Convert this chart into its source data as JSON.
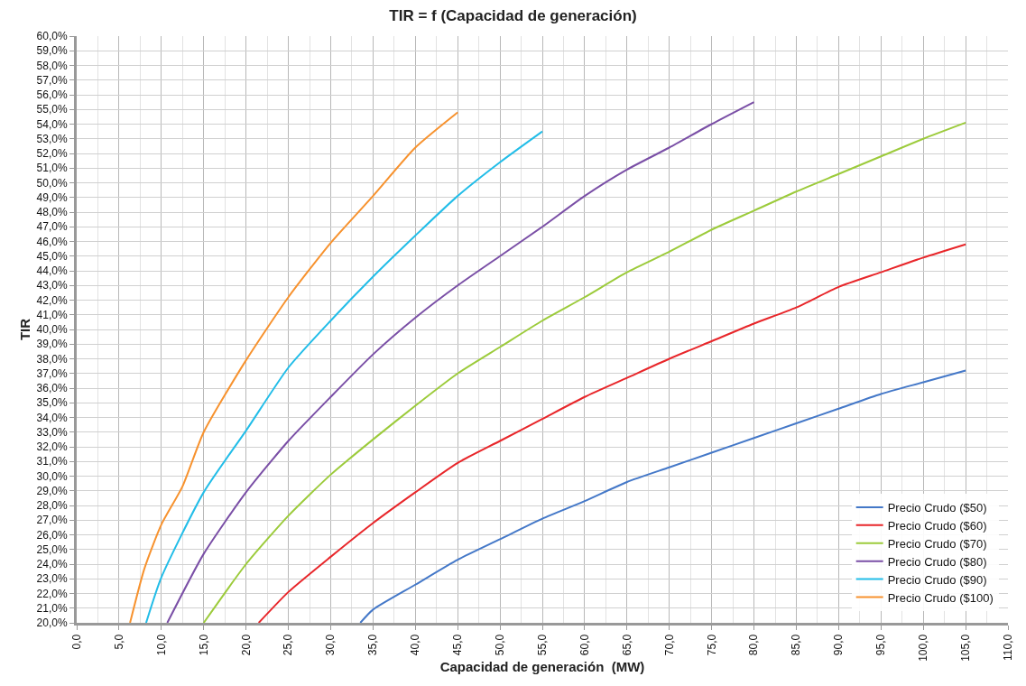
{
  "chart_data": {
    "type": "line",
    "title": "TIR = f (Capacidad de generación)",
    "xlabel": "Capacidad de generación  (MW)",
    "ylabel": "TIR",
    "xlim": [
      0,
      110
    ],
    "xticks": [
      {
        "value": 0,
        "label": "0,0"
      },
      {
        "value": 5,
        "label": "5,0"
      },
      {
        "value": 10,
        "label": "10,0"
      },
      {
        "value": 15,
        "label": "15,0"
      },
      {
        "value": 20,
        "label": "20,0"
      },
      {
        "value": 25,
        "label": "25,0"
      },
      {
        "value": 30,
        "label": "30,0"
      },
      {
        "value": 35,
        "label": "35,0"
      },
      {
        "value": 40,
        "label": "40,0"
      },
      {
        "value": 45,
        "label": "45,0"
      },
      {
        "value": 50,
        "label": "50,0"
      },
      {
        "value": 55,
        "label": "55,0"
      },
      {
        "value": 60,
        "label": "60,0"
      },
      {
        "value": 65,
        "label": "65,0"
      },
      {
        "value": 70,
        "label": "70,0"
      },
      {
        "value": 75,
        "label": "75,0"
      },
      {
        "value": 80,
        "label": "80,0"
      },
      {
        "value": 85,
        "label": "85,0"
      },
      {
        "value": 90,
        "label": "90,0"
      },
      {
        "value": 95,
        "label": "95,0"
      },
      {
        "value": 100,
        "label": "100,0"
      },
      {
        "value": 105,
        "label": "105,0"
      },
      {
        "value": 110,
        "label": "110,0"
      }
    ],
    "ylim": [
      20,
      60
    ],
    "yticks": [
      {
        "value": 20,
        "label": "20,0%"
      },
      {
        "value": 21,
        "label": "21,0%"
      },
      {
        "value": 22,
        "label": "22,0%"
      },
      {
        "value": 23,
        "label": "23,0%"
      },
      {
        "value": 24,
        "label": "24,0%"
      },
      {
        "value": 25,
        "label": "25,0%"
      },
      {
        "value": 26,
        "label": "26,0%"
      },
      {
        "value": 27,
        "label": "27,0%"
      },
      {
        "value": 28,
        "label": "28,0%"
      },
      {
        "value": 29,
        "label": "29,0%"
      },
      {
        "value": 30,
        "label": "30,0%"
      },
      {
        "value": 31,
        "label": "31,0%"
      },
      {
        "value": 32,
        "label": "32,0%"
      },
      {
        "value": 33,
        "label": "33,0%"
      },
      {
        "value": 34,
        "label": "34,0%"
      },
      {
        "value": 35,
        "label": "35,0%"
      },
      {
        "value": 36,
        "label": "36,0%"
      },
      {
        "value": 37,
        "label": "37,0%"
      },
      {
        "value": 38,
        "label": "38,0%"
      },
      {
        "value": 39,
        "label": "39,0%"
      },
      {
        "value": 40,
        "label": "40,0%"
      },
      {
        "value": 41,
        "label": "41,0%"
      },
      {
        "value": 42,
        "label": "42,0%"
      },
      {
        "value": 43,
        "label": "43,0%"
      },
      {
        "value": 44,
        "label": "44,0%"
      },
      {
        "value": 45,
        "label": "45,0%"
      },
      {
        "value": 46,
        "label": "46,0%"
      },
      {
        "value": 47,
        "label": "47,0%"
      },
      {
        "value": 48,
        "label": "48,0%"
      },
      {
        "value": 49,
        "label": "49,0%"
      },
      {
        "value": 50,
        "label": "50,0%"
      },
      {
        "value": 51,
        "label": "51,0%"
      },
      {
        "value": 52,
        "label": "52,0%"
      },
      {
        "value": 53,
        "label": "53,0%"
      },
      {
        "value": 54,
        "label": "54,0%"
      },
      {
        "value": 55,
        "label": "55,0%"
      },
      {
        "value": 56,
        "label": "56,0%"
      },
      {
        "value": 57,
        "label": "57,0%"
      },
      {
        "value": 58,
        "label": "58,0%"
      },
      {
        "value": 59,
        "label": "59,0%"
      },
      {
        "value": 60,
        "label": "60,0%"
      }
    ],
    "grid": true,
    "legend": "bottom right",
    "marker": "none",
    "line_style": "solid",
    "series": [
      {
        "name": "Precio Crudo ($50)",
        "color": "#4478c8",
        "x": [
          33.5,
          35,
          40,
          45,
          50,
          55,
          60,
          65,
          70,
          75,
          80,
          85,
          90,
          95,
          100,
          105
        ],
        "values": [
          20,
          20.9,
          22.6,
          24.3,
          25.7,
          27.1,
          28.3,
          29.6,
          30.6,
          31.6,
          32.6,
          33.6,
          34.6,
          35.6,
          36.4,
          37.2
        ]
      },
      {
        "name": "Precio Crudo ($60)",
        "color": "#e8262a",
        "x": [
          21.5,
          25,
          30,
          35,
          40,
          45,
          50,
          55,
          60,
          65,
          70,
          75,
          80,
          85,
          90,
          95,
          100,
          105
        ],
        "values": [
          20,
          22.1,
          24.5,
          26.8,
          28.9,
          30.9,
          32.4,
          33.9,
          35.4,
          36.7,
          38.0,
          39.2,
          40.4,
          41.5,
          42.9,
          43.9,
          44.9,
          45.8
        ]
      },
      {
        "name": "Precio Crudo ($70)",
        "color": "#9ccb3b",
        "x": [
          15,
          20,
          25,
          30,
          35,
          40,
          45,
          50,
          55,
          60,
          65,
          70,
          75,
          80,
          85,
          90,
          95,
          100,
          105
        ],
        "values": [
          20,
          24.0,
          27.3,
          30.1,
          32.5,
          34.8,
          37.0,
          38.8,
          40.6,
          42.2,
          43.9,
          45.3,
          46.8,
          48.1,
          49.4,
          50.6,
          51.8,
          53.0,
          54.1
        ]
      },
      {
        "name": "Precio Crudo ($80)",
        "color": "#7a4fa6",
        "x": [
          10.7,
          15,
          20,
          25,
          30,
          35,
          40,
          45,
          50,
          55,
          60,
          65,
          70,
          75,
          80
        ],
        "values": [
          20,
          24.7,
          28.9,
          32.4,
          35.4,
          38.3,
          40.8,
          43.0,
          45.0,
          47.0,
          49.1,
          50.9,
          52.4,
          54.0,
          55.5
        ]
      },
      {
        "name": "Precio Crudo ($90)",
        "color": "#22bde8",
        "x": [
          8.2,
          10,
          15,
          20,
          25,
          30,
          35,
          40,
          45,
          50,
          55
        ],
        "values": [
          20,
          23.1,
          28.9,
          33.1,
          37.4,
          40.6,
          43.6,
          46.4,
          49.1,
          51.4,
          53.5
        ]
      },
      {
        "name": "Precio Crudo ($100)",
        "color": "#f7922e",
        "x": [
          6.3,
          8,
          10,
          12.5,
          15,
          20,
          25,
          30,
          35,
          40,
          45
        ],
        "values": [
          20,
          23.7,
          26.7,
          29.3,
          33.0,
          37.9,
          42.2,
          45.9,
          49.1,
          52.4,
          54.8
        ]
      }
    ]
  }
}
